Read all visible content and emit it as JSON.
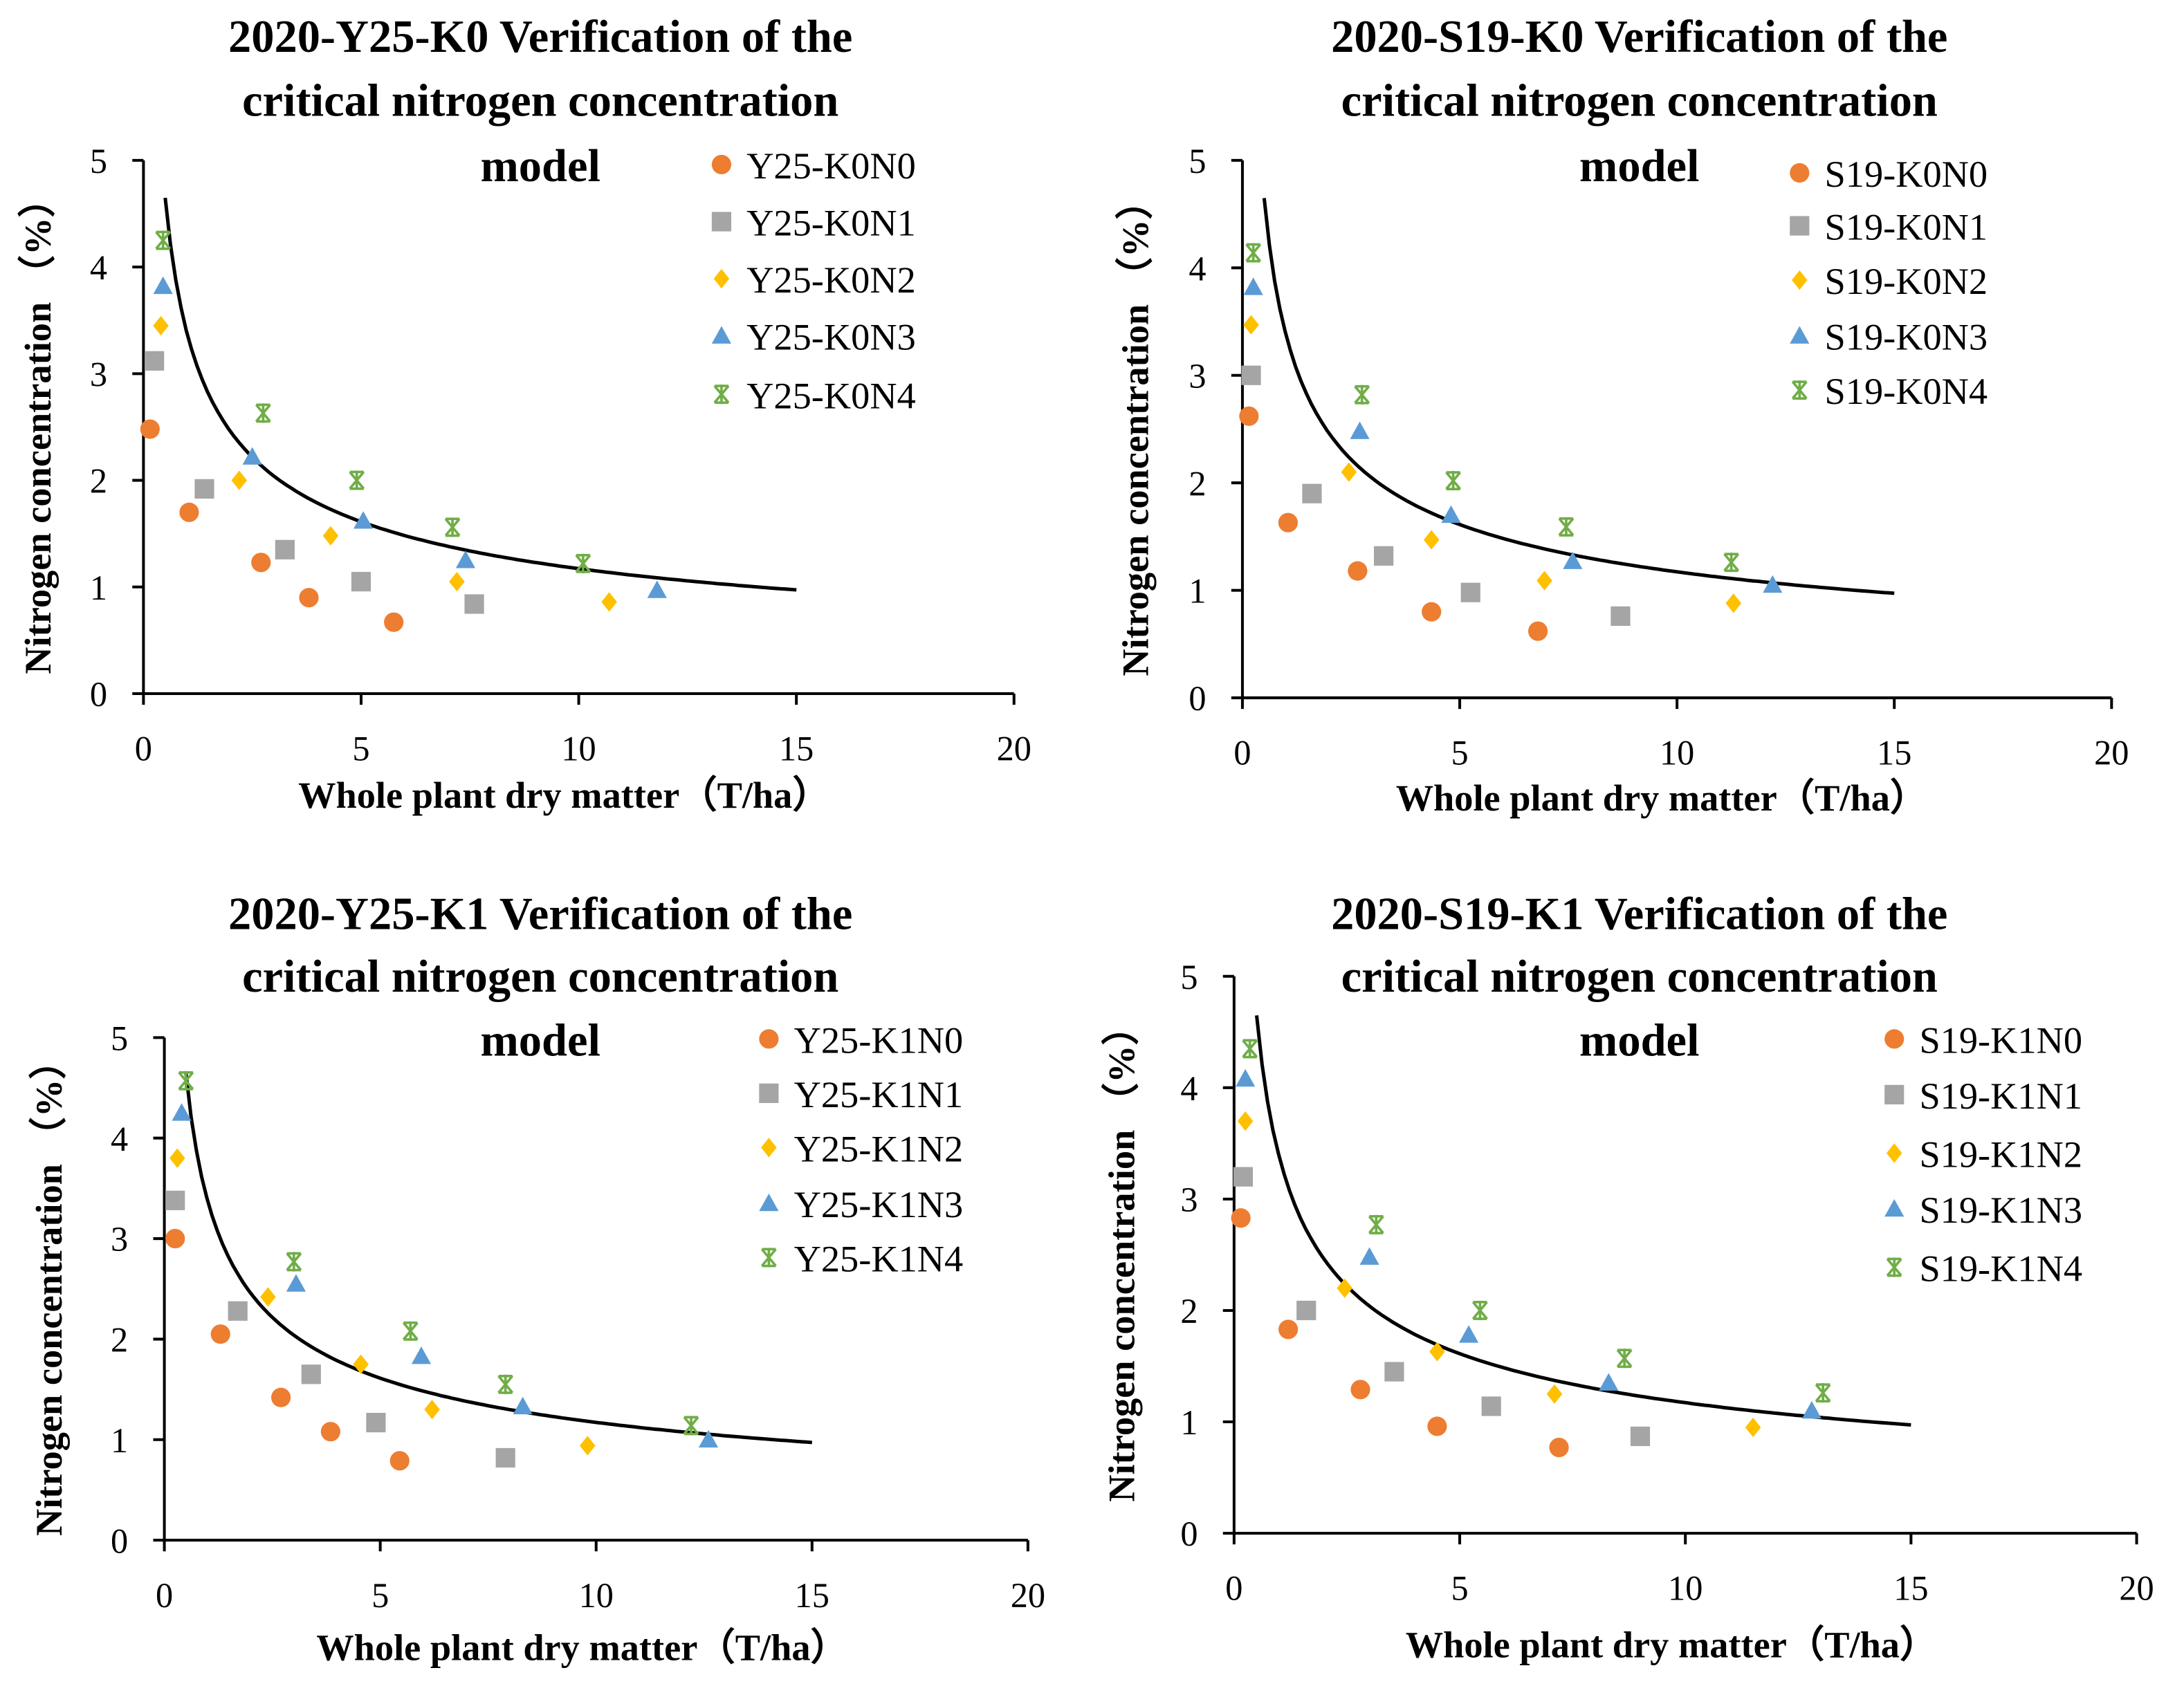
{
  "colors": {
    "N0": "#ED7D31",
    "N1": "#A5A5A5",
    "N2": "#FFC000",
    "N3": "#5B9BD5",
    "N4": "#70AD47",
    "curve": "#000000"
  },
  "chart_data": [
    {
      "type": "scatter",
      "title_lines": [
        "2020-Y25-K0 Verification of the",
        "critical nitrogen concentration",
        "model"
      ],
      "xlabel": "Whole plant dry matter（T/ha）",
      "ylabel": "Nitrogen concentration （%）",
      "xlim": [
        0,
        20
      ],
      "ylim": [
        0,
        5
      ],
      "xticks": [
        "0",
        "5",
        "10",
        "15",
        "20"
      ],
      "yticks": [
        "0",
        "1",
        "2",
        "3",
        "4",
        "5"
      ],
      "legend_position": "top-right",
      "curve": {
        "a": 3.38,
        "b": 0.46,
        "xrange": [
          0.5,
          15
        ]
      },
      "series": [
        {
          "name": "Y25-K0N0",
          "marker": "circle",
          "points": [
            [
              0.15,
              2.48
            ],
            [
              1.05,
              1.7
            ],
            [
              2.7,
              1.23
            ],
            [
              3.8,
              0.9
            ],
            [
              5.75,
              0.67
            ]
          ]
        },
        {
          "name": "Y25-K0N1",
          "marker": "square",
          "points": [
            [
              0.25,
              3.12
            ],
            [
              1.4,
              1.92
            ],
            [
              3.25,
              1.35
            ],
            [
              5.0,
              1.05
            ],
            [
              7.6,
              0.84
            ]
          ]
        },
        {
          "name": "Y25-K0N2",
          "marker": "diamond",
          "points": [
            [
              0.4,
              3.45
            ],
            [
              2.2,
              2.0
            ],
            [
              4.3,
              1.48
            ],
            [
              7.2,
              1.05
            ],
            [
              10.7,
              0.86
            ]
          ]
        },
        {
          "name": "Y25-K0N3",
          "marker": "triangle",
          "points": [
            [
              0.45,
              3.82
            ],
            [
              2.5,
              2.22
            ],
            [
              5.05,
              1.62
            ],
            [
              7.4,
              1.25
            ],
            [
              11.8,
              0.97
            ]
          ]
        },
        {
          "name": "Y25-K0N4",
          "marker": "star",
          "points": [
            [
              0.45,
              4.25
            ],
            [
              2.75,
              2.63
            ],
            [
              4.9,
              2.0
            ],
            [
              7.1,
              1.56
            ],
            [
              10.1,
              1.22
            ]
          ]
        }
      ]
    },
    {
      "type": "scatter",
      "title_lines": [
        "2020-S19-K0 Verification of the",
        "critical nitrogen concentration",
        "model"
      ],
      "xlabel": "Whole plant dry matter（T/ha）",
      "ylabel": "Nitrogen concentration （%）",
      "xlim": [
        0,
        20
      ],
      "ylim": [
        0,
        5
      ],
      "xticks": [
        "0",
        "5",
        "10",
        "15",
        "20"
      ],
      "yticks": [
        "0",
        "1",
        "2",
        "3",
        "4",
        "5"
      ],
      "legend_position": "top-right",
      "curve": {
        "a": 3.38,
        "b": 0.46,
        "xrange": [
          0.5,
          15
        ]
      },
      "series": [
        {
          "name": "S19-K0N0",
          "marker": "circle",
          "points": [
            [
              0.15,
              2.62
            ],
            [
              1.05,
              1.63
            ],
            [
              2.65,
              1.18
            ],
            [
              4.35,
              0.8
            ],
            [
              6.8,
              0.62
            ]
          ]
        },
        {
          "name": "S19-K0N1",
          "marker": "square",
          "points": [
            [
              0.2,
              3.0
            ],
            [
              1.6,
              1.9
            ],
            [
              3.25,
              1.32
            ],
            [
              5.25,
              0.98
            ],
            [
              8.7,
              0.76
            ]
          ]
        },
        {
          "name": "S19-K0N2",
          "marker": "diamond",
          "points": [
            [
              0.2,
              3.47
            ],
            [
              2.45,
              2.1
            ],
            [
              4.35,
              1.47
            ],
            [
              6.95,
              1.09
            ],
            [
              11.3,
              0.88
            ]
          ]
        },
        {
          "name": "S19-K0N3",
          "marker": "triangle",
          "points": [
            [
              0.25,
              3.82
            ],
            [
              2.7,
              2.48
            ],
            [
              4.8,
              1.7
            ],
            [
              7.6,
              1.27
            ],
            [
              12.2,
              1.05
            ]
          ]
        },
        {
          "name": "S19-K0N4",
          "marker": "star",
          "points": [
            [
              0.25,
              4.14
            ],
            [
              2.75,
              2.82
            ],
            [
              4.85,
              2.02
            ],
            [
              7.45,
              1.59
            ],
            [
              11.25,
              1.26
            ]
          ]
        }
      ]
    },
    {
      "type": "scatter",
      "title_lines": [
        "2020-Y25-K1 Verification of the",
        "critical nitrogen concentration",
        "model"
      ],
      "xlabel": "Whole plant dry matter（T/ha）",
      "ylabel": "Nitrogen concentration （%）",
      "xlim": [
        0,
        20
      ],
      "ylim": [
        0,
        5
      ],
      "xticks": [
        "0",
        "5",
        "10",
        "15",
        "20"
      ],
      "yticks": [
        "0",
        "1",
        "2",
        "3",
        "4",
        "5"
      ],
      "legend_position": "top-right",
      "curve": {
        "a": 3.38,
        "b": 0.46,
        "xrange": [
          0.5,
          15
        ]
      },
      "series": [
        {
          "name": "Y25-K1N0",
          "marker": "circle",
          "points": [
            [
              0.25,
              3.0
            ],
            [
              1.3,
              2.05
            ],
            [
              2.7,
              1.42
            ],
            [
              3.85,
              1.08
            ],
            [
              5.45,
              0.79
            ]
          ]
        },
        {
          "name": "Y25-K1N1",
          "marker": "square",
          "points": [
            [
              0.25,
              3.38
            ],
            [
              1.7,
              2.28
            ],
            [
              3.4,
              1.65
            ],
            [
              4.9,
              1.17
            ],
            [
              7.9,
              0.82
            ]
          ]
        },
        {
          "name": "Y25-K1N2",
          "marker": "diamond",
          "points": [
            [
              0.3,
              3.8
            ],
            [
              2.4,
              2.42
            ],
            [
              4.55,
              1.75
            ],
            [
              6.2,
              1.3
            ],
            [
              9.8,
              0.94
            ]
          ]
        },
        {
          "name": "Y25-K1N3",
          "marker": "triangle",
          "points": [
            [
              0.4,
              4.25
            ],
            [
              3.05,
              2.55
            ],
            [
              5.95,
              1.83
            ],
            [
              8.3,
              1.33
            ],
            [
              12.6,
              1.0
            ]
          ]
        },
        {
          "name": "Y25-K1N4",
          "marker": "star",
          "points": [
            [
              0.5,
              4.57
            ],
            [
              3.0,
              2.77
            ],
            [
              5.7,
              2.08
            ],
            [
              7.9,
              1.55
            ],
            [
              12.2,
              1.14
            ]
          ]
        }
      ]
    },
    {
      "type": "scatter",
      "title_lines": [
        "2020-S19-K1 Verification of the",
        "critical nitrogen concentration",
        "model"
      ],
      "xlabel": "Whole plant dry matter（T/ha）",
      "ylabel": "Nitrogen concentration （%）",
      "xlim": [
        0,
        20
      ],
      "ylim": [
        0,
        5
      ],
      "xticks": [
        "0",
        "5",
        "10",
        "15",
        "20"
      ],
      "yticks": [
        "0",
        "1",
        "2",
        "3",
        "4",
        "5"
      ],
      "legend_position": "top-right",
      "curve": {
        "a": 3.38,
        "b": 0.46,
        "xrange": [
          0.5,
          15
        ]
      },
      "series": [
        {
          "name": "S19-K1N0",
          "marker": "circle",
          "points": [
            [
              0.15,
              2.83
            ],
            [
              1.2,
              1.83
            ],
            [
              2.8,
              1.29
            ],
            [
              4.5,
              0.96
            ],
            [
              7.2,
              0.77
            ]
          ]
        },
        {
          "name": "S19-K1N1",
          "marker": "square",
          "points": [
            [
              0.2,
              3.2
            ],
            [
              1.6,
              2.0
            ],
            [
              3.55,
              1.45
            ],
            [
              5.7,
              1.14
            ],
            [
              9.0,
              0.87
            ]
          ]
        },
        {
          "name": "S19-K1N2",
          "marker": "diamond",
          "points": [
            [
              0.25,
              3.7
            ],
            [
              2.45,
              2.2
            ],
            [
              4.5,
              1.63
            ],
            [
              7.1,
              1.25
            ],
            [
              11.5,
              0.95
            ]
          ]
        },
        {
          "name": "S19-K1N3",
          "marker": "triangle",
          "points": [
            [
              0.25,
              4.08
            ],
            [
              3.0,
              2.48
            ],
            [
              5.2,
              1.78
            ],
            [
              8.3,
              1.35
            ],
            [
              12.8,
              1.1
            ]
          ]
        },
        {
          "name": "S19-K1N4",
          "marker": "star",
          "points": [
            [
              0.35,
              4.35
            ],
            [
              3.15,
              2.77
            ],
            [
              5.45,
              2.0
            ],
            [
              8.65,
              1.57
            ],
            [
              13.05,
              1.26
            ]
          ]
        }
      ]
    }
  ]
}
